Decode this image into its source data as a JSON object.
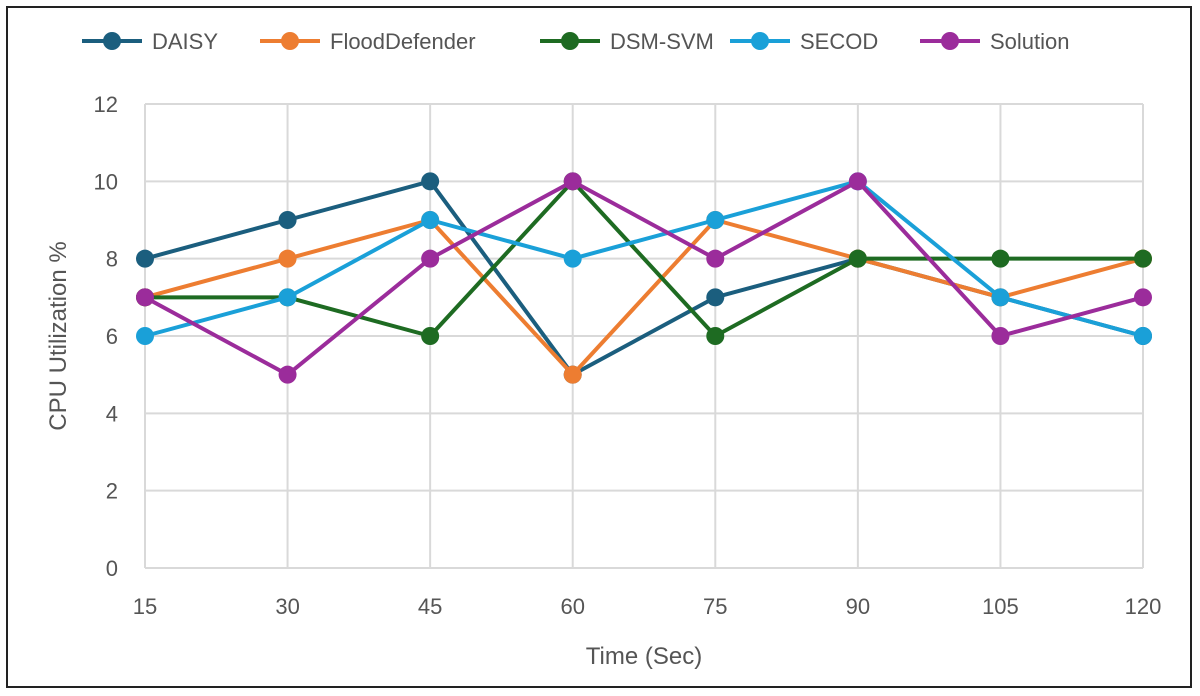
{
  "chart_data": {
    "type": "line",
    "title": "",
    "xlabel": "Time (Sec)",
    "ylabel": "CPU Utilization %",
    "x": [
      15,
      30,
      45,
      60,
      75,
      90,
      105,
      120
    ],
    "ylim": [
      0,
      12
    ],
    "yticks": [
      0,
      2,
      4,
      6,
      8,
      10,
      12
    ],
    "grid": true,
    "legend_position": "top",
    "series": [
      {
        "name": "DAISY",
        "color": "#1b5e7e",
        "values": [
          8,
          9,
          10,
          5,
          7,
          8,
          7,
          6
        ]
      },
      {
        "name": "FloodDefender",
        "color": "#ed7d31",
        "values": [
          7,
          8,
          9,
          5,
          9,
          8,
          7,
          8
        ]
      },
      {
        "name": "DSM-SVM",
        "color": "#1e6b22",
        "values": [
          7,
          7,
          6,
          10,
          6,
          8,
          8,
          8
        ]
      },
      {
        "name": "SECOD",
        "color": "#1aa0d8",
        "values": [
          6,
          7,
          9,
          8,
          9,
          10,
          7,
          6
        ]
      },
      {
        "name": "Solution",
        "color": "#9b2c9b",
        "values": [
          7,
          5,
          8,
          10,
          8,
          10,
          6,
          7
        ]
      }
    ]
  }
}
